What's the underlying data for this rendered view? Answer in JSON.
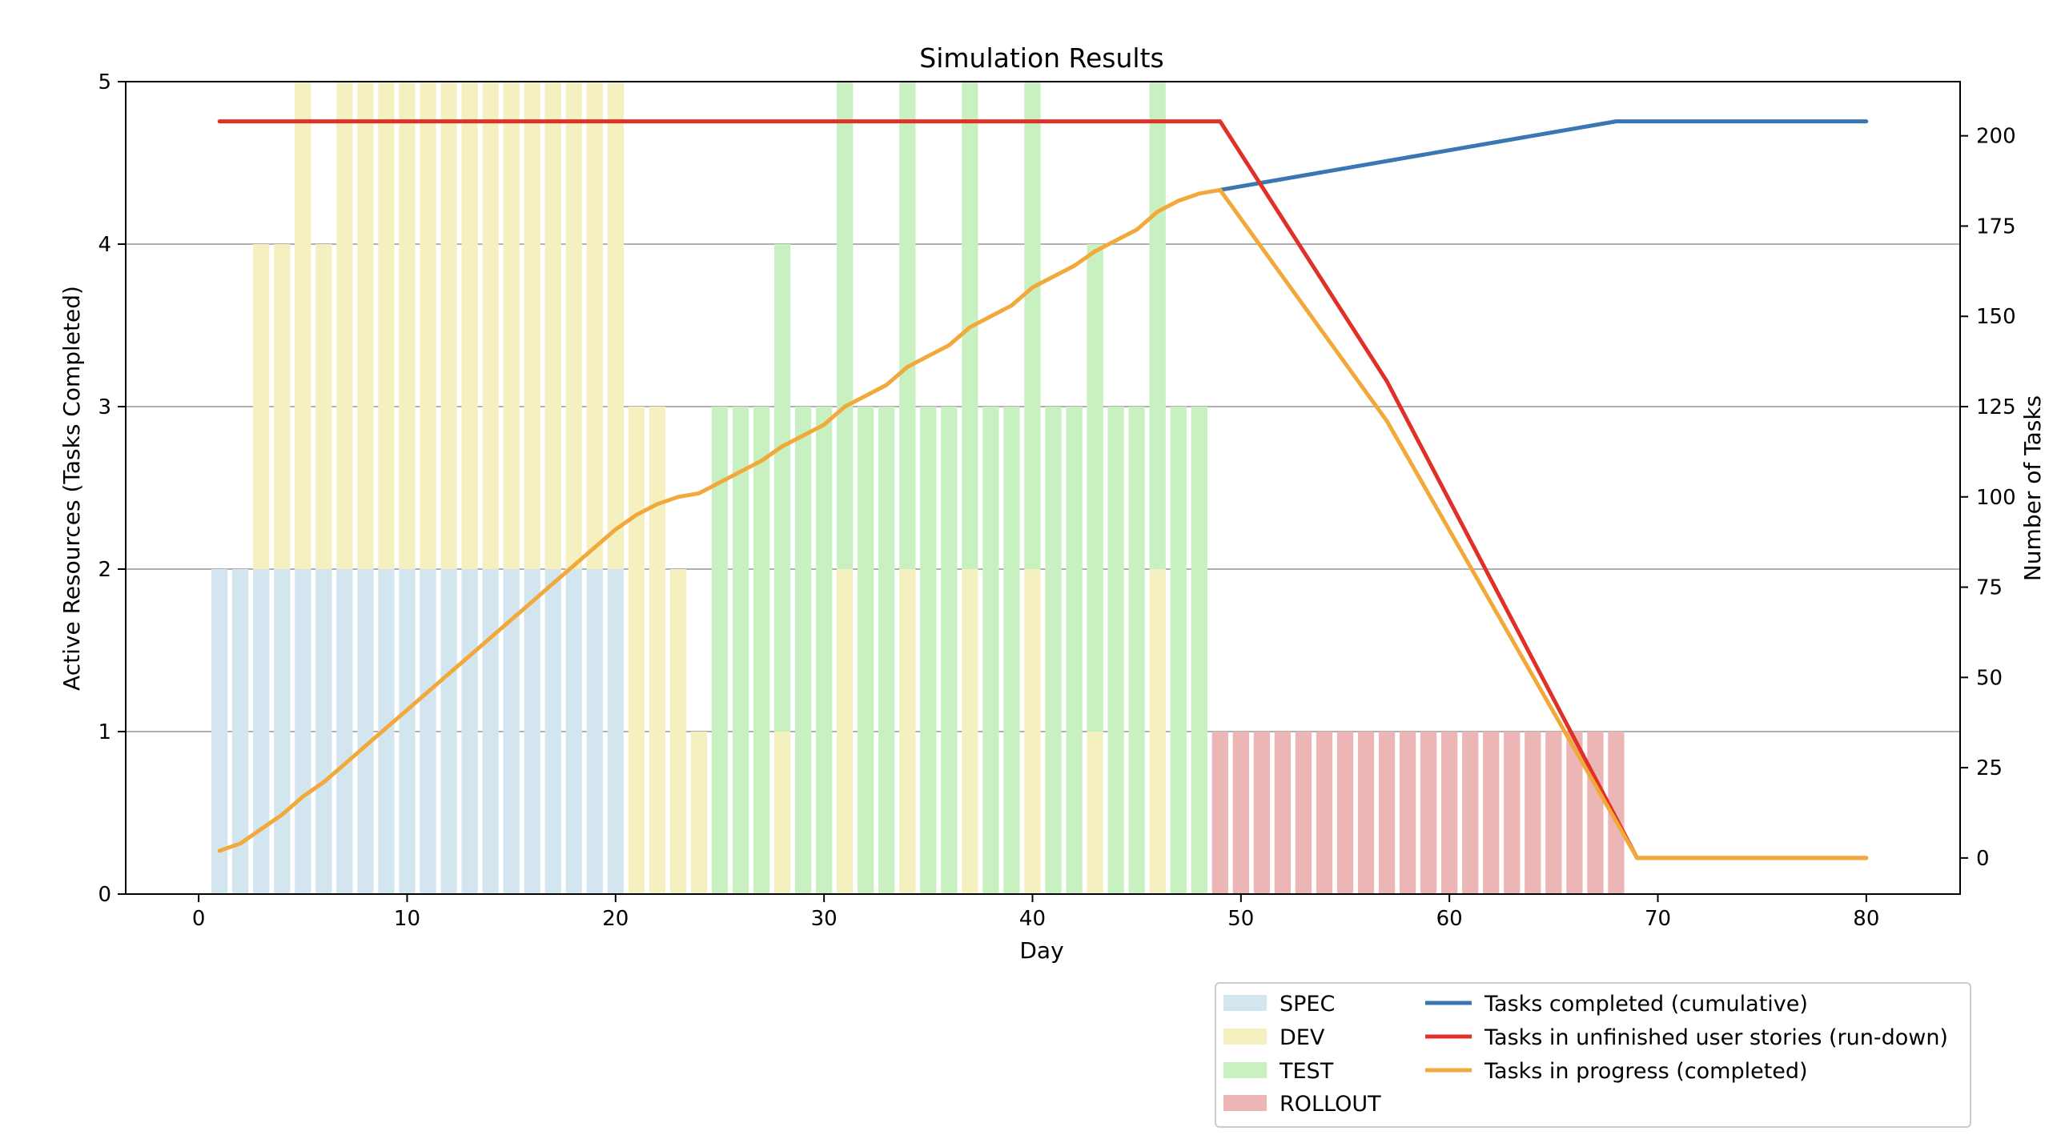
{
  "chart_data": {
    "type": "bar",
    "title": "Simulation Results",
    "xlabel": "Day",
    "ylabel": "Active Resources (Tasks Completed)",
    "y2label": "Number of Tasks",
    "xlim": [
      -3.5,
      84.5
    ],
    "ylim": [
      0,
      5
    ],
    "y2lim": [
      -10,
      215
    ],
    "xticks": [
      0,
      10,
      20,
      30,
      40,
      50,
      60,
      70,
      80
    ],
    "yticks": [
      0,
      1,
      2,
      3,
      4,
      5
    ],
    "y2ticks": [
      0,
      25,
      50,
      75,
      100,
      125,
      150,
      175,
      200
    ],
    "grid": "horizontal",
    "legend_position": "bottom-right",
    "colors": {
      "SPEC": "#d3e6f0",
      "DEV": "#f5f0c0",
      "TEST": "#c8f0c0",
      "ROLLOUT": "#ecb6b6",
      "completed": "#3a76b2",
      "rundown": "#e03128",
      "in_progress": "#f2a93b"
    },
    "bars": {
      "days": [
        1,
        2,
        3,
        4,
        5,
        6,
        7,
        8,
        9,
        10,
        11,
        12,
        13,
        14,
        15,
        16,
        17,
        18,
        19,
        20,
        21,
        22,
        23,
        24,
        25,
        26,
        27,
        28,
        29,
        30,
        31,
        32,
        33,
        34,
        35,
        36,
        37,
        38,
        39,
        40,
        41,
        42,
        43,
        44,
        45,
        46,
        47,
        48,
        49,
        50,
        51,
        52,
        53,
        54,
        55,
        56,
        57,
        58,
        59,
        60,
        61,
        62,
        63,
        64,
        65,
        66,
        67,
        68
      ],
      "series": [
        {
          "name": "SPEC",
          "values": [
            2,
            2,
            2,
            2,
            2,
            2,
            2,
            2,
            2,
            2,
            2,
            2,
            2,
            2,
            2,
            2,
            2,
            2,
            2,
            2,
            0,
            0,
            0,
            0,
            0,
            0,
            0,
            0,
            0,
            0,
            0,
            0,
            0,
            0,
            0,
            0,
            0,
            0,
            0,
            0,
            0,
            0,
            0,
            0,
            0,
            0,
            0,
            0,
            0,
            0,
            0,
            0,
            0,
            0,
            0,
            0,
            0,
            0,
            0,
            0,
            0,
            0,
            0,
            0,
            0,
            0,
            0,
            0
          ]
        },
        {
          "name": "DEV",
          "values": [
            0,
            0,
            2,
            2,
            3,
            2,
            3,
            3,
            3,
            3,
            3,
            3,
            3,
            3,
            3,
            3,
            3,
            3,
            3,
            3,
            3,
            3,
            2,
            1,
            0,
            0,
            0,
            1,
            0,
            0,
            2,
            0,
            0,
            2,
            0,
            0,
            2,
            0,
            0,
            2,
            0,
            0,
            1,
            0,
            0,
            2,
            0,
            0,
            0,
            0,
            0,
            0,
            0,
            0,
            0,
            0,
            0,
            0,
            0,
            0,
            0,
            0,
            0,
            0,
            0,
            0,
            0,
            0
          ]
        },
        {
          "name": "TEST",
          "values": [
            0,
            0,
            0,
            0,
            0,
            0,
            0,
            0,
            0,
            0,
            0,
            0,
            0,
            0,
            0,
            0,
            0,
            0,
            0,
            0,
            0,
            0,
            0,
            0,
            3,
            3,
            3,
            3,
            3,
            3,
            3,
            3,
            3,
            3,
            3,
            3,
            3,
            3,
            3,
            3,
            3,
            3,
            3,
            3,
            3,
            3,
            3,
            3,
            0,
            0,
            0,
            0,
            0,
            0,
            0,
            0,
            0,
            0,
            0,
            0,
            0,
            0,
            0,
            0,
            0,
            0,
            0,
            0
          ]
        },
        {
          "name": "ROLLOUT",
          "values": [
            0,
            0,
            0,
            0,
            0,
            0,
            0,
            0,
            0,
            0,
            0,
            0,
            0,
            0,
            0,
            0,
            0,
            0,
            0,
            0,
            0,
            0,
            0,
            0,
            0,
            0,
            0,
            0,
            0,
            0,
            0,
            0,
            0,
            0,
            0,
            0,
            0,
            0,
            0,
            0,
            0,
            0,
            0,
            0,
            0,
            0,
            0,
            0,
            1,
            1,
            1,
            1,
            1,
            1,
            1,
            1,
            1,
            1,
            1,
            1,
            1,
            1,
            1,
            1,
            1,
            1,
            1,
            1
          ]
        }
      ]
    },
    "lines": [
      {
        "name": "Tasks completed (cumulative)",
        "x": [
          49,
          68,
          80
        ],
        "y": [
          185,
          204,
          204
        ]
      },
      {
        "name": "Tasks in unfinished user stories (run-down)",
        "x": [
          1,
          49,
          57,
          69,
          80
        ],
        "y": [
          204,
          204,
          132,
          0,
          0
        ]
      },
      {
        "name": "Tasks in progress (completed)",
        "x": [
          1,
          2,
          3,
          4,
          5,
          6,
          7,
          8,
          9,
          10,
          11,
          12,
          13,
          14,
          15,
          16,
          17,
          18,
          19,
          20,
          21,
          22,
          23,
          24,
          25,
          26,
          27,
          28,
          29,
          30,
          31,
          32,
          33,
          34,
          35,
          36,
          37,
          38,
          39,
          40,
          41,
          42,
          43,
          44,
          45,
          46,
          47,
          48,
          49,
          57,
          69,
          80
        ],
        "y": [
          2,
          4,
          8,
          12,
          17,
          21,
          26,
          31,
          36,
          41,
          46,
          51,
          56,
          61,
          66,
          71,
          76,
          81,
          86,
          91,
          95,
          98,
          100,
          101,
          104,
          107,
          110,
          114,
          117,
          120,
          125,
          128,
          131,
          136,
          139,
          142,
          147,
          150,
          153,
          158,
          161,
          164,
          168,
          171,
          174,
          179,
          182,
          184,
          185,
          121,
          0,
          0
        ]
      }
    ]
  }
}
